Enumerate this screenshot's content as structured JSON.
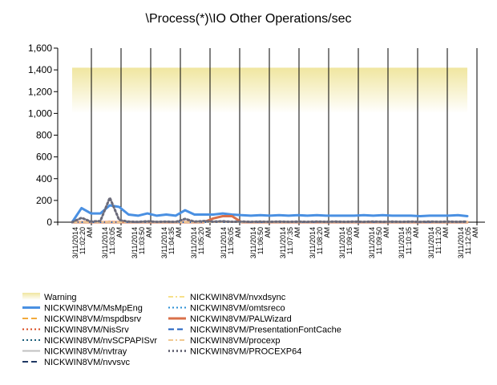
{
  "chart_data": {
    "type": "line",
    "title": "\\Process(*)\\IO Other Operations/sec",
    "ylim": [
      0,
      1600
    ],
    "yticks": [
      "0",
      "200",
      "400",
      "600",
      "800",
      "1,000",
      "1,200",
      "1,400",
      "1,600"
    ],
    "ytick_values": [
      0,
      200,
      400,
      600,
      800,
      1000,
      1200,
      1400,
      1600
    ],
    "grid": {
      "vertical": true,
      "horizontal": false
    },
    "legend_position": "bottom",
    "x_tick_labels": [
      [
        "3/11/2014",
        "11:02:20",
        "AM"
      ],
      [
        "3/11/2014",
        "11:03:05",
        "AM"
      ],
      [
        "3/11/2014",
        "11:03:50",
        "AM"
      ],
      [
        "3/11/2014",
        "11:04:35",
        "AM"
      ],
      [
        "3/11/2014",
        "11:05:20",
        "AM"
      ],
      [
        "3/11/2014",
        "11:06:05",
        "AM"
      ],
      [
        "3/11/2014",
        "11:06:50",
        "AM"
      ],
      [
        "3/11/2014",
        "11:07:35",
        "AM"
      ],
      [
        "3/11/2014",
        "11:08:20",
        "AM"
      ],
      [
        "3/11/2014",
        "11:09:05",
        "AM"
      ],
      [
        "3/11/2014",
        "11:09:50",
        "AM"
      ],
      [
        "3/11/2014",
        "11:10:35",
        "AM"
      ],
      [
        "3/11/2014",
        "11:11:20",
        "AM"
      ],
      [
        "3/11/2014",
        "11:12:05",
        "AM"
      ]
    ],
    "warning_band": {
      "name": "Warning",
      "y_range": [
        1000,
        1420
      ],
      "color_top": "#f0e6a0",
      "color_bottom": "#ffffff"
    },
    "series": [
      {
        "name": "NICKWIN8VM/MsMpEng",
        "color": "#4a90e2",
        "style": "solid",
        "width": 3,
        "values": [
          0,
          130,
          80,
          80,
          155,
          140,
          70,
          60,
          80,
          60,
          70,
          60,
          110,
          70,
          70,
          70,
          80,
          70,
          65,
          60,
          65,
          60,
          65,
          60,
          65,
          60,
          65,
          60,
          60,
          60,
          60,
          65,
          60,
          65,
          60,
          60,
          60,
          55,
          60,
          60,
          60,
          65,
          55
        ]
      },
      {
        "name": "NICKWIN8VM/mspdbsrv",
        "color": "#f2a93b",
        "style": "dash",
        "width": 2,
        "values": [
          0,
          2,
          0,
          1,
          2,
          0,
          1,
          0,
          1,
          0,
          1,
          0,
          2,
          0,
          1,
          0,
          1,
          0,
          1,
          0,
          1,
          0,
          1,
          0,
          1,
          0,
          1,
          0,
          1,
          0,
          1,
          0,
          1,
          0,
          1,
          0,
          1,
          0,
          1,
          0,
          1,
          0,
          1
        ]
      },
      {
        "name": "NICKWIN8VM/NisSrv",
        "color": "#d9471c",
        "style": "dot",
        "width": 2,
        "values": [
          0,
          3,
          1,
          2,
          5,
          2,
          1,
          1,
          2,
          1,
          1,
          1,
          3,
          1,
          1,
          1,
          2,
          1,
          1,
          1,
          1,
          1,
          1,
          1,
          1,
          1,
          1,
          1,
          1,
          1,
          1,
          1,
          1,
          1,
          1,
          1,
          1,
          1,
          1,
          1,
          1,
          1,
          1
        ]
      },
      {
        "name": "NICKWIN8VM/nvSCPAPISvr",
        "color": "#1c5f7a",
        "style": "dot",
        "width": 2,
        "values": [
          0,
          1,
          0,
          1,
          1,
          0,
          1,
          0,
          1,
          0,
          1,
          0,
          1,
          0,
          1,
          0,
          1,
          0,
          1,
          0,
          1,
          0,
          1,
          0,
          1,
          0,
          1,
          0,
          1,
          0,
          1,
          0,
          1,
          0,
          1,
          0,
          1,
          0,
          1,
          0,
          1,
          0,
          1
        ]
      },
      {
        "name": "NICKWIN8VM/nvtray",
        "color": "#c0c0c0",
        "style": "solid",
        "width": 2,
        "values": [
          0,
          2,
          1,
          1,
          2,
          1,
          1,
          1,
          1,
          1,
          1,
          1,
          2,
          1,
          1,
          1,
          1,
          1,
          1,
          1,
          1,
          1,
          1,
          1,
          1,
          1,
          1,
          1,
          1,
          1,
          1,
          1,
          1,
          1,
          1,
          1,
          1,
          1,
          1,
          1,
          1,
          1,
          1
        ]
      },
      {
        "name": "NICKWIN8VM/nvvsvc",
        "color": "#1f3864",
        "style": "dash",
        "width": 2,
        "values": [
          0,
          1,
          0,
          0,
          1,
          0,
          0,
          0,
          0,
          0,
          0,
          0,
          1,
          0,
          0,
          0,
          0,
          0,
          0,
          0,
          0,
          0,
          0,
          0,
          0,
          0,
          0,
          0,
          0,
          0,
          0,
          0,
          0,
          0,
          0,
          0,
          0,
          0,
          0,
          0,
          0,
          0,
          0
        ]
      },
      {
        "name": "NICKWIN8VM/nvxdsync",
        "color": "#f7e08a",
        "style": "dashdot",
        "width": 2,
        "values": [
          0,
          1,
          0,
          1,
          1,
          0,
          1,
          0,
          1,
          0,
          1,
          0,
          1,
          0,
          1,
          0,
          1,
          0,
          1,
          0,
          1,
          0,
          1,
          0,
          1,
          0,
          1,
          0,
          1,
          0,
          1,
          0,
          1,
          0,
          1,
          0,
          1,
          0,
          1,
          0,
          1,
          0,
          1
        ]
      },
      {
        "name": "NICKWIN8VM/omtsreco",
        "color": "#2b8fd4",
        "style": "dot",
        "width": 2,
        "values": [
          0,
          1,
          0,
          1,
          1,
          0,
          1,
          0,
          1,
          0,
          1,
          0,
          1,
          0,
          1,
          0,
          1,
          0,
          1,
          0,
          1,
          0,
          1,
          0,
          1,
          0,
          1,
          0,
          1,
          0,
          1,
          0,
          1,
          0,
          1,
          0,
          1,
          0,
          1,
          0,
          1,
          0,
          1
        ]
      },
      {
        "name": "NICKWIN8VM/PALWizard",
        "color": "#d9704a",
        "style": "solid",
        "width": 3,
        "values": [
          0,
          0,
          0,
          0,
          0,
          0,
          0,
          0,
          0,
          0,
          0,
          0,
          0,
          0,
          0,
          0,
          0,
          0,
          0,
          0,
          0,
          0,
          0,
          0,
          0,
          0,
          0,
          0,
          0,
          0,
          0,
          0,
          0,
          0,
          0,
          0,
          0,
          0,
          0,
          0,
          0,
          0,
          0
        ]
      },
      {
        "name": "NICKWIN8VM/PresentationFontCache",
        "color": "#1f5fbf",
        "style": "dash",
        "width": 2,
        "values": [
          0,
          0,
          0,
          0,
          0,
          0,
          0,
          0,
          0,
          0,
          0,
          0,
          0,
          0,
          0,
          0,
          0,
          0,
          0,
          0,
          0,
          0,
          0,
          0,
          0,
          0,
          0,
          0,
          0,
          0,
          0,
          0,
          0,
          0,
          0,
          0,
          0,
          0,
          0,
          0,
          0,
          0,
          0
        ]
      },
      {
        "name": "NICKWIN8VM/procexp",
        "color": "#f0c890",
        "style": "dashdot",
        "width": 2,
        "values": [
          0,
          1,
          0,
          1,
          1,
          0,
          1,
          0,
          1,
          0,
          1,
          0,
          1,
          0,
          1,
          0,
          1,
          0,
          1,
          0,
          1,
          0,
          1,
          0,
          1,
          0,
          1,
          0,
          1,
          0,
          1,
          0,
          1,
          0,
          1,
          0,
          1,
          0,
          1,
          0,
          1,
          0,
          1
        ]
      },
      {
        "name": "NICKWIN8VM/PROCEXP64",
        "color": "#6b6b7a",
        "style": "dot",
        "width": 3,
        "values": [
          0,
          40,
          5,
          10,
          225,
          20,
          5,
          2,
          8,
          3,
          5,
          2,
          30,
          5,
          10,
          5,
          8,
          4,
          6,
          3,
          5,
          3,
          5,
          3,
          5,
          3,
          5,
          3,
          5,
          3,
          5,
          3,
          5,
          3,
          5,
          3,
          5,
          3,
          5,
          3,
          5,
          3,
          5
        ]
      }
    ],
    "palwizard_bump": {
      "x_index_start": 14,
      "x_index_end": 18,
      "values": [
        0,
        35,
        55,
        55,
        0
      ]
    }
  }
}
